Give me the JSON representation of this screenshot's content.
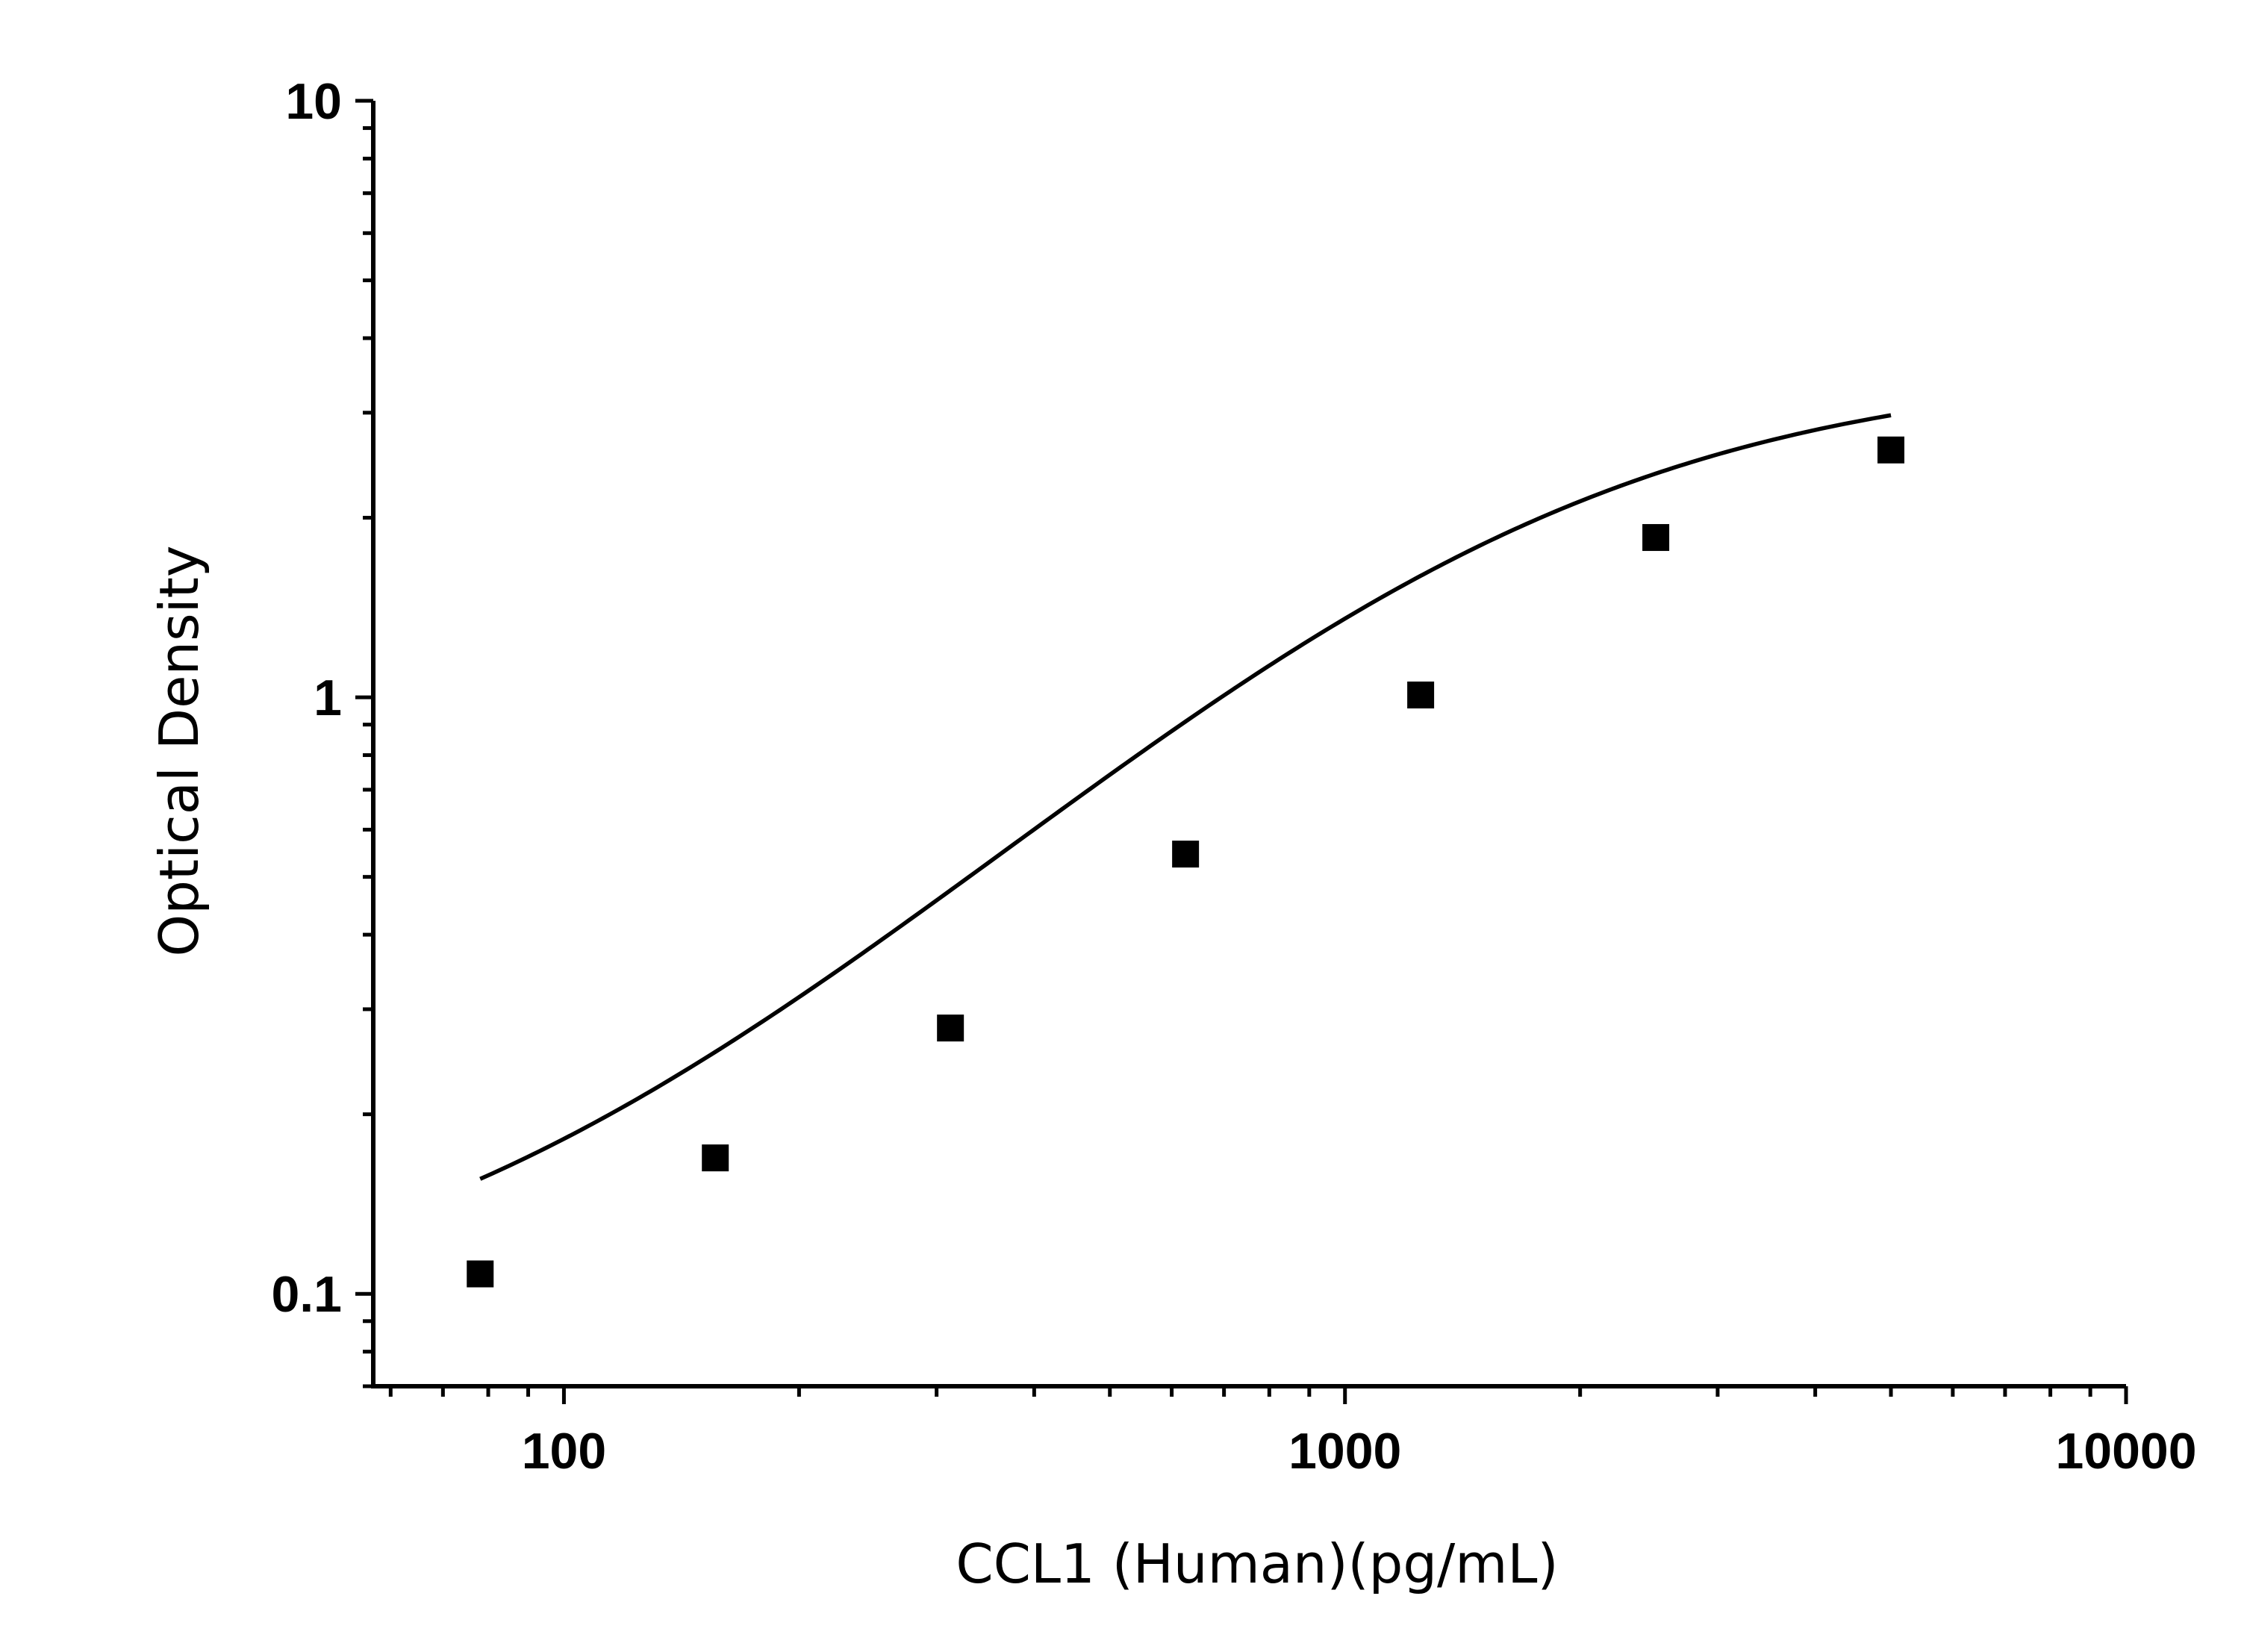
{
  "chart_data": {
    "type": "scatter",
    "xlabel": "CCL1 (Human)(pg/mL)",
    "ylabel": "Optical Density",
    "xscale": "log",
    "yscale": "log",
    "xlim": [
      57,
      10000
    ],
    "ylim": [
      0.07,
      10
    ],
    "x_ticks": [
      100,
      1000,
      10000
    ],
    "x_tick_labels": [
      "100",
      "1000",
      "10000"
    ],
    "y_ticks": [
      0.1,
      1,
      10
    ],
    "y_tick_labels": [
      "0.1",
      "1",
      "10"
    ],
    "grid": false,
    "legend": "none",
    "colors": {
      "marker": "#000000",
      "line": "#000000",
      "axis": "#000000"
    },
    "series": [
      {
        "marker": "square",
        "x": [
          78.125,
          156.25,
          312.5,
          625,
          1250,
          2500,
          5000
        ],
        "y": [
          0.108,
          0.169,
          0.279,
          0.546,
          1.009,
          1.853,
          2.598
        ]
      }
    ],
    "fit_curve": {
      "type": "4PL",
      "A": 0.085,
      "B": 1.3,
      "C": 1550,
      "D": 3.6,
      "x_range": [
        78.125,
        5000
      ]
    }
  }
}
